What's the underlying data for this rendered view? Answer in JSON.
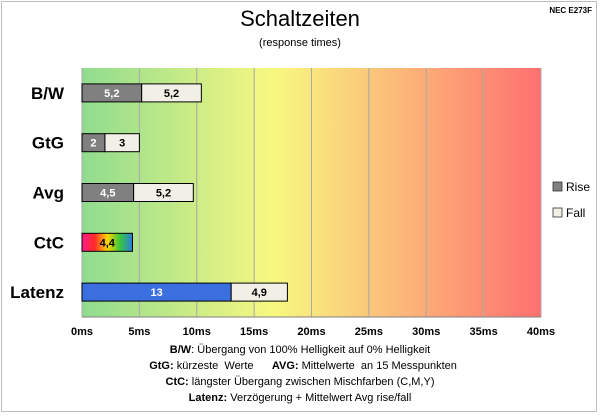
{
  "chart_data": {
    "type": "bar",
    "orientation": "horizontal",
    "stacked": true,
    "title": "Schaltzeiten",
    "subtitle": "(response times)",
    "model": "NEC E273F",
    "categories": [
      "B/W",
      "GtG",
      "Avg",
      "CtC",
      "Latenz"
    ],
    "series": [
      {
        "name": "Rise",
        "color": "#808080",
        "values": [
          5.2,
          2,
          4.5,
          4.4,
          13
        ],
        "labels": [
          "5,2",
          "2",
          "4,5",
          "4,4",
          "13"
        ]
      },
      {
        "name": "Fall",
        "color": "#f2f0e6",
        "values": [
          5.2,
          3,
          5.2,
          null,
          4.9
        ],
        "labels": [
          "5,2",
          "3",
          "5,2",
          "",
          "4,9"
        ]
      }
    ],
    "special_colors": {
      "CtC": "rainbow",
      "Latenz": "#3b6fe0"
    },
    "xlim": [
      0,
      40
    ],
    "xticks": [
      0,
      5,
      10,
      15,
      20,
      25,
      30,
      35,
      40
    ],
    "xtick_labels": [
      "0ms",
      "5ms",
      "10ms",
      "15ms",
      "20ms",
      "25ms",
      "30ms",
      "35ms",
      "40ms"
    ],
    "grid": true,
    "background_gradient": [
      "#8fdc8f",
      "#f8f880",
      "#ff7070"
    ],
    "legend_position": "right"
  },
  "notes": [
    {
      "label": "B/W",
      "text": ":  Übergang von 100% Helligkeit auf 0% Helligkeit"
    },
    {
      "label": "GtG:",
      "text": " kürzeste  Werte",
      "label2": "AVG:",
      "text2": " Mittelwerte  an 15 Messpunkten"
    },
    {
      "label": "CtC:",
      "text": " längster Übergang  zwischen Mischfarben (C,M,Y)"
    },
    {
      "label": "Latenz:",
      "text": " Verzögerung  + Mittelwert  Avg rise/fall"
    }
  ]
}
